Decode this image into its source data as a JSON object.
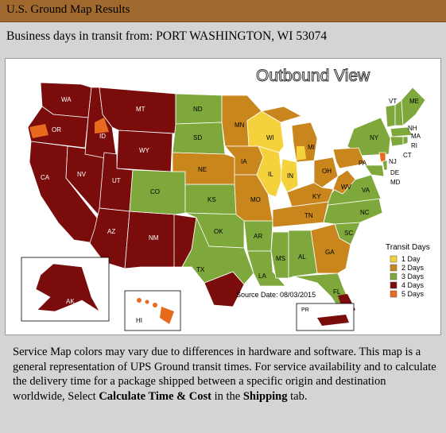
{
  "header": {
    "title": "U.S. Ground Map Results"
  },
  "info": {
    "transit_from": "Business days in transit from: PORT WASHINGTON, WI 53074"
  },
  "map": {
    "view_title": "Outbound View",
    "source_date": "Source Date: 08/03/2015",
    "legend": {
      "title": "Transit Days",
      "items": [
        {
          "label": "1 Day",
          "color": "#f5d23c"
        },
        {
          "label": "2 Days",
          "color": "#c8861c"
        },
        {
          "label": "3 Days",
          "color": "#7ea83b"
        },
        {
          "label": "4 Days",
          "color": "#7a0c0c"
        },
        {
          "label": "5 Days",
          "color": "#e86a1e"
        }
      ]
    },
    "state_labels": {
      "WA": "WA",
      "OR": "OR",
      "CA": "CA",
      "NV": "NV",
      "ID": "ID",
      "MT": "MT",
      "WY": "WY",
      "UT": "UT",
      "AZ": "AZ",
      "CO": "CO",
      "NM": "NM",
      "ND": "ND",
      "SD": "SD",
      "NE": "NE",
      "KS": "KS",
      "OK": "OK",
      "TX": "TX",
      "MN": "MN",
      "IA": "IA",
      "MO": "MO",
      "AR": "AR",
      "LA": "LA",
      "WI": "WI",
      "IL": "IL",
      "MI": "MI",
      "IN": "IN",
      "OH": "OH",
      "KY": "KY",
      "TN": "TN",
      "MS": "MS",
      "AL": "AL",
      "GA": "GA",
      "FL": "FL",
      "SC": "SC",
      "NC": "NC",
      "VA": "VA",
      "WV": "WV",
      "PA": "PA",
      "NY": "NY",
      "VT": "VT",
      "NH": "NH",
      "ME": "ME",
      "MA": "MA",
      "RI": "RI",
      "CT": "CT",
      "NJ": "NJ",
      "DE": "DE",
      "MD": "MD",
      "AK": "AK",
      "HI": "HI",
      "PR": "PR"
    }
  },
  "footer": {
    "text_1": "Service Map colors may vary due to differences in hardware and software. This map is a general representation of UPS Ground transit times. For service availability and to calculate the delivery time for a package shipped between a specific origin and destination worldwide, Select ",
    "bold_1": "Calculate Time & Cost",
    "text_2": " in the ",
    "bold_2": "Shipping",
    "text_3": " tab."
  }
}
